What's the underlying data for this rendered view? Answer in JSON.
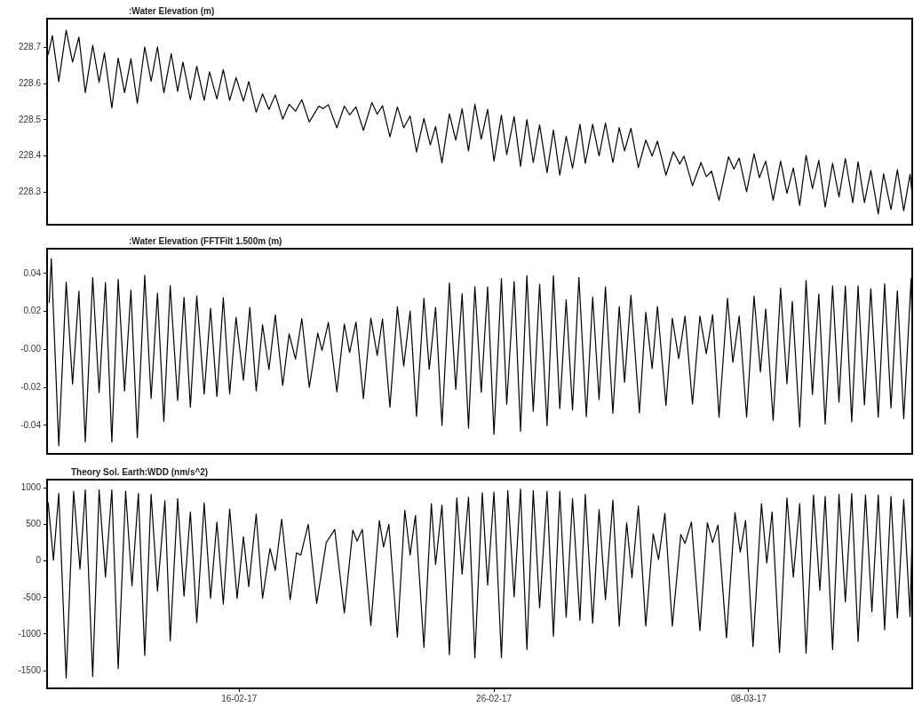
{
  "chart_data": [
    {
      "type": "line",
      "title": ":Water Elevation (m)",
      "color": "#000000",
      "marker": "none",
      "line_style": "solid",
      "legend": false,
      "tick_labels": "y",
      "xlim": [
        "2017-02-08T11:00",
        "2017-03-14T10:00"
      ],
      "ylim": [
        228.21,
        228.78
      ],
      "yticks": [
        228.3,
        228.4,
        228.5,
        228.6,
        228.7
      ],
      "x": [
        "2017-02-08T12:00",
        "2017-02-08T16:00",
        "2017-02-08T22:00",
        "2017-02-09T05:00",
        "2017-02-09T11:00",
        "2017-02-09T17:00",
        "2017-02-09T23:00",
        "2017-02-10T06:00",
        "2017-02-10T12:00",
        "2017-02-10T17:00",
        "2017-02-11T00:00",
        "2017-02-11T06:00",
        "2017-02-11T12:00",
        "2017-02-11T18:00",
        "2017-02-12T00:00",
        "2017-02-12T07:00",
        "2017-02-12T13:00",
        "2017-02-12T19:00",
        "2017-02-13T01:00",
        "2017-02-13T08:00",
        "2017-02-13T14:00",
        "2017-02-13T19:00",
        "2017-02-14T02:00",
        "2017-02-14T08:00",
        "2017-02-14T15:00",
        "2017-02-14T20:00",
        "2017-02-15T03:00",
        "2017-02-15T09:00",
        "2017-02-15T15:00",
        "2017-02-15T21:00",
        "2017-02-16T04:00",
        "2017-02-16T09:00",
        "2017-02-16T16:00",
        "2017-02-16T22:00",
        "2017-02-17T04:00",
        "2017-02-17T10:00",
        "2017-02-17T17:00",
        "2017-02-17T23:00",
        "2017-02-18T05:00",
        "2017-02-18T11:00",
        "2017-02-18T18:00",
        "2017-02-19T03:00",
        "2017-02-19T07:00",
        "2017-02-19T12:00",
        "2017-02-19T20:00",
        "2017-02-20T03:00",
        "2017-02-20T08:00",
        "2017-02-20T14:00",
        "2017-02-20T21:00",
        "2017-02-21T05:00",
        "2017-02-21T10:00",
        "2017-02-21T15:00",
        "2017-02-21T22:00",
        "2017-02-22T05:00",
        "2017-02-22T11:00",
        "2017-02-22T17:00",
        "2017-02-22T23:00",
        "2017-02-23T06:00",
        "2017-02-23T12:00",
        "2017-02-23T17:00",
        "2017-02-23T23:00",
        "2017-02-24T06:00",
        "2017-02-24T12:00",
        "2017-02-24T18:00",
        "2017-02-25T00:00",
        "2017-02-25T06:00",
        "2017-02-25T12:00",
        "2017-02-25T18:00",
        "2017-02-26T00:00",
        "2017-02-26T07:00",
        "2017-02-26T12:00",
        "2017-02-26T19:00",
        "2017-02-27T01:00",
        "2017-02-27T07:00",
        "2017-02-27T13:00",
        "2017-02-27T19:00",
        "2017-02-28T02:00",
        "2017-02-28T08:00",
        "2017-02-28T14:00",
        "2017-02-28T20:00",
        "2017-03-01T02:00",
        "2017-03-01T09:00",
        "2017-03-01T14:00",
        "2017-03-01T21:00",
        "2017-03-02T03:00",
        "2017-03-02T09:00",
        "2017-03-02T16:00",
        "2017-03-02T22:00",
        "2017-03-03T03:00",
        "2017-03-03T09:00",
        "2017-03-03T16:00",
        "2017-03-03T23:00",
        "2017-03-04T05:00",
        "2017-03-04T10:00",
        "2017-03-04T18:00",
        "2017-03-05T01:00",
        "2017-03-05T07:00",
        "2017-03-05T11:00",
        "2017-03-05T19:00",
        "2017-03-06T03:00",
        "2017-03-06T08:00",
        "2017-03-06T13:00",
        "2017-03-06T20:00",
        "2017-03-07T05:00",
        "2017-03-07T10:00",
        "2017-03-07T15:00",
        "2017-03-07T22:00",
        "2017-03-08T05:00",
        "2017-03-08T10:00",
        "2017-03-08T16:00",
        "2017-03-08T23:00",
        "2017-03-09T06:00",
        "2017-03-09T12:00",
        "2017-03-09T18:00",
        "2017-03-10T00:00",
        "2017-03-10T06:00",
        "2017-03-10T12:00",
        "2017-03-10T18:00",
        "2017-03-11T00:00",
        "2017-03-11T07:00",
        "2017-03-11T13:00",
        "2017-03-11T19:00",
        "2017-03-12T02:00",
        "2017-03-12T07:00",
        "2017-03-12T13:00",
        "2017-03-12T19:00",
        "2017-03-13T02:00",
        "2017-03-13T07:00",
        "2017-03-13T14:00",
        "2017-03-13T20:00",
        "2017-03-14T02:00",
        "2017-03-14T08:00",
        "2017-03-14T10:00"
      ],
      "values": [
        228.68,
        228.733,
        228.606,
        228.748,
        228.66,
        228.729,
        228.575,
        228.706,
        228.604,
        228.685,
        228.533,
        228.671,
        228.575,
        228.669,
        228.546,
        228.702,
        228.607,
        228.702,
        228.575,
        228.683,
        228.579,
        228.66,
        228.556,
        228.648,
        228.554,
        228.633,
        228.558,
        228.639,
        228.554,
        228.617,
        228.552,
        228.606,
        228.521,
        228.572,
        228.529,
        228.569,
        228.502,
        228.543,
        228.524,
        228.556,
        228.494,
        228.538,
        228.531,
        228.542,
        228.478,
        228.538,
        228.514,
        228.536,
        228.471,
        228.548,
        228.516,
        228.539,
        228.453,
        228.536,
        228.478,
        228.511,
        228.411,
        228.504,
        228.431,
        228.482,
        228.381,
        228.517,
        228.444,
        228.531,
        228.414,
        228.543,
        228.447,
        228.529,
        228.386,
        228.513,
        228.404,
        228.509,
        228.372,
        228.501,
        228.382,
        228.486,
        228.354,
        228.472,
        228.347,
        228.454,
        228.366,
        228.488,
        228.38,
        228.488,
        228.4,
        228.491,
        228.382,
        228.479,
        228.414,
        228.477,
        228.368,
        228.444,
        228.4,
        228.441,
        228.347,
        228.412,
        228.378,
        228.4,
        228.318,
        228.382,
        228.343,
        228.358,
        228.277,
        228.398,
        228.364,
        228.394,
        228.301,
        228.406,
        228.34,
        228.386,
        228.277,
        228.386,
        228.297,
        228.367,
        228.263,
        228.402,
        228.31,
        228.388,
        228.259,
        228.38,
        228.287,
        228.393,
        228.271,
        228.384,
        228.271,
        228.36,
        228.24,
        228.351,
        228.252,
        228.362,
        228.249,
        228.35,
        228.29
      ]
    },
    {
      "type": "line",
      "title": ":Water Elevation (FFTFilt 1.500m (m)",
      "color": "#000000",
      "marker": "none",
      "line_style": "solid",
      "legend": false,
      "tick_labels": "y",
      "xlim": [
        "2017-02-08T11:00",
        "2017-03-14T10:00"
      ],
      "ylim": [
        -0.055,
        0.053
      ],
      "yticks": [
        -0.04,
        -0.02,
        {
          "value": 0,
          "label": "-0.00"
        },
        0.02,
        0.04
      ],
      "x": [
        "2017-02-08T13:00",
        "2017-02-08T15:00",
        "2017-02-08T22:00",
        "2017-02-09T05:00",
        "2017-02-09T11:00",
        "2017-02-09T17:00",
        "2017-02-09T23:00",
        "2017-02-10T06:00",
        "2017-02-10T12:00",
        "2017-02-10T18:00",
        "2017-02-11T00:00",
        "2017-02-11T06:00",
        "2017-02-11T12:00",
        "2017-02-11T18:00",
        "2017-02-12T00:00",
        "2017-02-12T07:00",
        "2017-02-12T13:00",
        "2017-02-12T19:00",
        "2017-02-13T01:00",
        "2017-02-13T07:00",
        "2017-02-13T14:00",
        "2017-02-13T20:00",
        "2017-02-14T02:00",
        "2017-02-14T08:00",
        "2017-02-14T15:00",
        "2017-02-14T21:00",
        "2017-02-15T03:00",
        "2017-02-15T09:00",
        "2017-02-15T15:00",
        "2017-02-15T21:00",
        "2017-02-16T04:00",
        "2017-02-16T10:00",
        "2017-02-16T16:00",
        "2017-02-16T22:00",
        "2017-02-17T04:00",
        "2017-02-17T10:00",
        "2017-02-17T17:00",
        "2017-02-17T23:00",
        "2017-02-18T05:00",
        "2017-02-18T11:00",
        "2017-02-18T18:00",
        "2017-02-19T02:00",
        "2017-02-19T06:00",
        "2017-02-19T12:00",
        "2017-02-19T20:00",
        "2017-02-20T03:00",
        "2017-02-20T08:00",
        "2017-02-20T14:00",
        "2017-02-20T21:00",
        "2017-02-21T04:00",
        "2017-02-21T10:00",
        "2017-02-21T15:00",
        "2017-02-21T22:00",
        "2017-02-22T05:00",
        "2017-02-22T11:00",
        "2017-02-22T17:00",
        "2017-02-22T23:00",
        "2017-02-23T06:00",
        "2017-02-23T11:00",
        "2017-02-23T17:00",
        "2017-02-23T23:00",
        "2017-02-24T06:00",
        "2017-02-24T12:00",
        "2017-02-24T18:00",
        "2017-02-25T00:00",
        "2017-02-25T06:00",
        "2017-02-25T12:00",
        "2017-02-25T18:00",
        "2017-02-26T00:00",
        "2017-02-26T07:00",
        "2017-02-26T12:00",
        "2017-02-26T19:00",
        "2017-02-27T01:00",
        "2017-02-27T07:00",
        "2017-02-27T13:00",
        "2017-02-27T19:00",
        "2017-02-28T02:00",
        "2017-02-28T08:00",
        "2017-02-28T14:00",
        "2017-02-28T20:00",
        "2017-03-01T02:00",
        "2017-03-01T08:00",
        "2017-03-01T15:00",
        "2017-03-01T21:00",
        "2017-03-02T03:00",
        "2017-03-02T09:00",
        "2017-03-02T16:00",
        "2017-03-02T22:00",
        "2017-03-03T03:00",
        "2017-03-03T09:00",
        "2017-03-03T17:00",
        "2017-03-03T23:00",
        "2017-03-04T05:00",
        "2017-03-04T10:00",
        "2017-03-04T18:00",
        "2017-03-05T00:00",
        "2017-03-05T06:00",
        "2017-03-05T12:00",
        "2017-03-05T19:00",
        "2017-03-06T02:00",
        "2017-03-06T08:00",
        "2017-03-06T14:00",
        "2017-03-06T20:00",
        "2017-03-07T04:00",
        "2017-03-07T09:00",
        "2017-03-07T15:00",
        "2017-03-07T22:00",
        "2017-03-08T05:00",
        "2017-03-08T11:00",
        "2017-03-08T16:00",
        "2017-03-08T23:00",
        "2017-03-09T06:00",
        "2017-03-09T12:00",
        "2017-03-09T17:00",
        "2017-03-10T00:00",
        "2017-03-10T06:00",
        "2017-03-10T12:00",
        "2017-03-10T18:00",
        "2017-03-11T00:00",
        "2017-03-11T07:00",
        "2017-03-11T13:00",
        "2017-03-11T19:00",
        "2017-03-12T01:00",
        "2017-03-12T07:00",
        "2017-03-12T13:00",
        "2017-03-12T19:00",
        "2017-03-13T02:00",
        "2017-03-13T08:00",
        "2017-03-13T14:00",
        "2017-03-13T20:00",
        "2017-03-14T02:00",
        "2017-03-14T09:00",
        "2017-03-14T10:00"
      ],
      "values": [
        0.0245,
        0.0477,
        -0.0507,
        0.0354,
        -0.0182,
        0.0306,
        -0.0488,
        0.0378,
        -0.0227,
        0.0352,
        -0.0488,
        0.0368,
        -0.0219,
        0.0312,
        -0.0464,
        0.039,
        -0.0259,
        0.0296,
        -0.0379,
        0.0336,
        -0.0269,
        0.0274,
        -0.0304,
        0.0282,
        -0.0235,
        0.0216,
        -0.0248,
        0.0272,
        -0.0235,
        0.0168,
        -0.0163,
        0.0221,
        -0.0219,
        0.013,
        -0.0107,
        0.0181,
        -0.019,
        0.0082,
        -0.0051,
        0.0162,
        -0.02,
        0.0085,
        -0.0006,
        0.0141,
        -0.0224,
        0.0133,
        -0.0016,
        0.0144,
        -0.0259,
        0.0165,
        -0.0032,
        0.016,
        -0.0304,
        0.0224,
        -0.0088,
        0.0202,
        -0.0352,
        0.0269,
        -0.0104,
        0.0221,
        -0.04,
        0.0349,
        -0.0211,
        0.0293,
        -0.0414,
        0.033,
        -0.0226,
        0.0329,
        -0.0447,
        0.0373,
        -0.0289,
        0.0357,
        -0.0431,
        0.0388,
        -0.0326,
        0.0342,
        -0.0401,
        0.0388,
        -0.0311,
        0.0261,
        -0.0319,
        0.0379,
        -0.0354,
        0.0275,
        -0.0264,
        0.0329,
        -0.0336,
        0.0226,
        -0.0173,
        0.0285,
        -0.0334,
        0.0195,
        -0.0101,
        0.0226,
        -0.0295,
        0.0164,
        -0.0049,
        0.0175,
        -0.0288,
        0.0175,
        -0.0022,
        0.0182,
        -0.0357,
        0.0269,
        -0.0068,
        0.0175,
        -0.0357,
        0.028,
        -0.0119,
        0.0213,
        -0.0374,
        0.0323,
        -0.0181,
        0.0252,
        -0.0408,
        0.0362,
        -0.0238,
        0.0291,
        -0.0393,
        0.0334,
        -0.0277,
        0.0334,
        -0.0382,
        0.0334,
        -0.0292,
        0.0319,
        -0.0357,
        0.0345,
        -0.0308,
        0.0308,
        -0.0365,
        0.0373,
        0.0094
      ]
    },
    {
      "type": "line",
      "title": "Theory Sol. Earth:WDD (nm/s^2)",
      "color": "#000000",
      "marker": "none",
      "line_style": "solid",
      "legend": false,
      "xlim": [
        "2017-02-08T11:00",
        "2017-03-14T10:00"
      ],
      "xticks": [
        {
          "value": "2017-02-16",
          "label": "16-02-17"
        },
        {
          "value": "2017-02-26",
          "label": "26-02-17"
        },
        {
          "value": "2017-03-08",
          "label": "08-03-17"
        }
      ],
      "ylim": [
        -1740,
        1110
      ],
      "yticks": [
        -1500,
        -1000,
        -500,
        0,
        500,
        1000
      ],
      "x": [
        "2017-02-08T12:00",
        "2017-02-08T17:00",
        "2017-02-08T22:00",
        "2017-02-09T05:00",
        "2017-02-09T12:00",
        "2017-02-09T18:00",
        "2017-02-09T23:00",
        "2017-02-10T06:00",
        "2017-02-10T12:00",
        "2017-02-10T18:00",
        "2017-02-11T00:00",
        "2017-02-11T06:00",
        "2017-02-11T13:00",
        "2017-02-11T19:00",
        "2017-02-12T01:00",
        "2017-02-12T07:00",
        "2017-02-12T13:00",
        "2017-02-12T19:00",
        "2017-02-13T02:00",
        "2017-02-13T07:00",
        "2017-02-13T14:00",
        "2017-02-13T20:00",
        "2017-02-14T02:00",
        "2017-02-14T08:00",
        "2017-02-14T15:00",
        "2017-02-14T21:00",
        "2017-02-15T03:00",
        "2017-02-15T09:00",
        "2017-02-15T15:00",
        "2017-02-15T22:00",
        "2017-02-16T04:00",
        "2017-02-16T09:00",
        "2017-02-16T16:00",
        "2017-02-16T22:00",
        "2017-02-17T05:00",
        "2017-02-17T10:00",
        "2017-02-17T16:00",
        "2017-02-18T00:00",
        "2017-02-18T06:00",
        "2017-02-18T10:00",
        "2017-02-18T17:00",
        "2017-02-19T01:00",
        "2017-02-19T10:00",
        "2017-02-19T18:00",
        "2017-02-20T03:00",
        "2017-02-20T11:00",
        "2017-02-20T15:00",
        "2017-02-20T20:00",
        "2017-02-21T04:00",
        "2017-02-21T12:00",
        "2017-02-21T16:00",
        "2017-02-21T21:00",
        "2017-02-22T05:00",
        "2017-02-22T12:00",
        "2017-02-22T17:00",
        "2017-02-22T22:00",
        "2017-02-23T06:00",
        "2017-02-23T13:00",
        "2017-02-23T17:00",
        "2017-02-23T23:00",
        "2017-02-24T06:00",
        "2017-02-24T13:00",
        "2017-02-24T18:00",
        "2017-02-25T00:00",
        "2017-02-25T06:00",
        "2017-02-25T13:00",
        "2017-02-25T18:00",
        "2017-02-26T00:00",
        "2017-02-26T07:00",
        "2017-02-26T13:00",
        "2017-02-26T19:00",
        "2017-02-27T01:00",
        "2017-02-27T07:00",
        "2017-02-27T13:00",
        "2017-02-27T19:00",
        "2017-02-28T02:00",
        "2017-02-28T08:00",
        "2017-02-28T14:00",
        "2017-02-28T20:00",
        "2017-03-01T02:00",
        "2017-03-01T09:00",
        "2017-03-01T14:00",
        "2017-03-01T21:00",
        "2017-03-02T03:00",
        "2017-03-02T09:00",
        "2017-03-02T16:00",
        "2017-03-02T22:00",
        "2017-03-03T05:00",
        "2017-03-03T10:00",
        "2017-03-03T16:00",
        "2017-03-03T23:00",
        "2017-03-04T06:00",
        "2017-03-04T11:00",
        "2017-03-04T17:00",
        "2017-03-05T00:00",
        "2017-03-05T08:00",
        "2017-03-05T12:00",
        "2017-03-05T18:00",
        "2017-03-06T02:00",
        "2017-03-06T09:00",
        "2017-03-06T14:00",
        "2017-03-06T19:00",
        "2017-03-07T03:00",
        "2017-03-07T11:00",
        "2017-03-07T16:00",
        "2017-03-07T21:00",
        "2017-03-08T04:00",
        "2017-03-08T12:00",
        "2017-03-08T17:00",
        "2017-03-08T22:00",
        "2017-03-09T05:00",
        "2017-03-09T12:00",
        "2017-03-09T18:00",
        "2017-03-10T00:00",
        "2017-03-10T06:00",
        "2017-03-10T13:00",
        "2017-03-10T19:00",
        "2017-03-11T00:00",
        "2017-03-11T07:00",
        "2017-03-11T13:00",
        "2017-03-11T19:00",
        "2017-03-12T01:00",
        "2017-03-12T07:00",
        "2017-03-12T14:00",
        "2017-03-12T20:00",
        "2017-03-13T02:00",
        "2017-03-13T08:00",
        "2017-03-13T14:00",
        "2017-03-13T20:00",
        "2017-03-14T02:00",
        "2017-03-14T08:00",
        "2017-03-14T10:00"
      ],
      "values": [
        800,
        10,
        920,
        -1600,
        950,
        -110,
        970,
        -1580,
        970,
        -220,
        970,
        -1470,
        950,
        -340,
        920,
        -1290,
        910,
        -410,
        820,
        -1090,
        850,
        -480,
        670,
        -840,
        790,
        -510,
        530,
        -590,
        710,
        -510,
        330,
        -350,
        640,
        -510,
        170,
        -130,
        570,
        -530,
        110,
        80,
        500,
        -580,
        250,
        430,
        -710,
        420,
        270,
        430,
        -880,
        550,
        190,
        500,
        -1040,
        690,
        80,
        620,
        -1180,
        780,
        -50,
        760,
        -1280,
        860,
        -180,
        870,
        -1320,
        930,
        -330,
        940,
        -1320,
        960,
        -490,
        980,
        -1210,
        960,
        -640,
        950,
        -1030,
        950,
        -770,
        850,
        -810,
        910,
        -850,
        700,
        -530,
        830,
        -890,
        520,
        -230,
        750,
        -890,
        370,
        20,
        650,
        -890,
        360,
        240,
        530,
        -950,
        520,
        250,
        490,
        -1050,
        660,
        120,
        550,
        -1170,
        780,
        -30,
        670,
        -1250,
        860,
        -220,
        780,
        -1260,
        900,
        -400,
        880,
        -1210,
        910,
        -560,
        920,
        -1100,
        900,
        -690,
        900,
        -940,
        880,
        -780,
        840,
        -760,
        450
      ]
    }
  ]
}
